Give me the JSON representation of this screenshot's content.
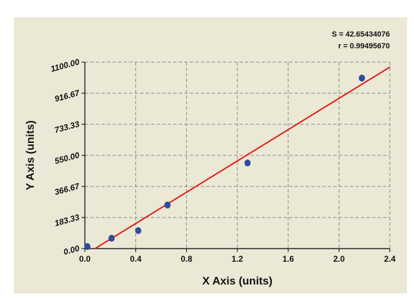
{
  "chart_data": {
    "type": "scatter",
    "x_label": "X Axis (units)",
    "y_label": "Y Axis (units)",
    "annotations": [
      "S = 42.65434076",
      "r = 0.99495670"
    ],
    "xlim": [
      0,
      2.4
    ],
    "ylim": [
      0,
      1100
    ],
    "xticks": [
      {
        "value": 0,
        "label": "0.0"
      },
      0.4,
      0.8,
      1.2,
      1.6,
      {
        "value": 2,
        "label": "2.0"
      },
      2.4
    ],
    "yticks": [
      {
        "value": 0,
        "label": "0.00"
      },
      183.33,
      366.67,
      {
        "value": 550,
        "label": "550.00"
      },
      733.33,
      916.67,
      {
        "value": 1100,
        "label": "1100.00"
      }
    ],
    "grid": true,
    "points": {
      "color": "#2f4c9e",
      "x": [
        0.02,
        0.21,
        0.42,
        0.65,
        1.28,
        2.18
      ],
      "values": [
        12,
        61,
        106,
        257,
        505,
        1006
      ]
    },
    "fit_line": {
      "color": "#e0201b",
      "x": [
        0.08,
        2.4
      ],
      "values": [
        0,
        1071
      ]
    }
  }
}
